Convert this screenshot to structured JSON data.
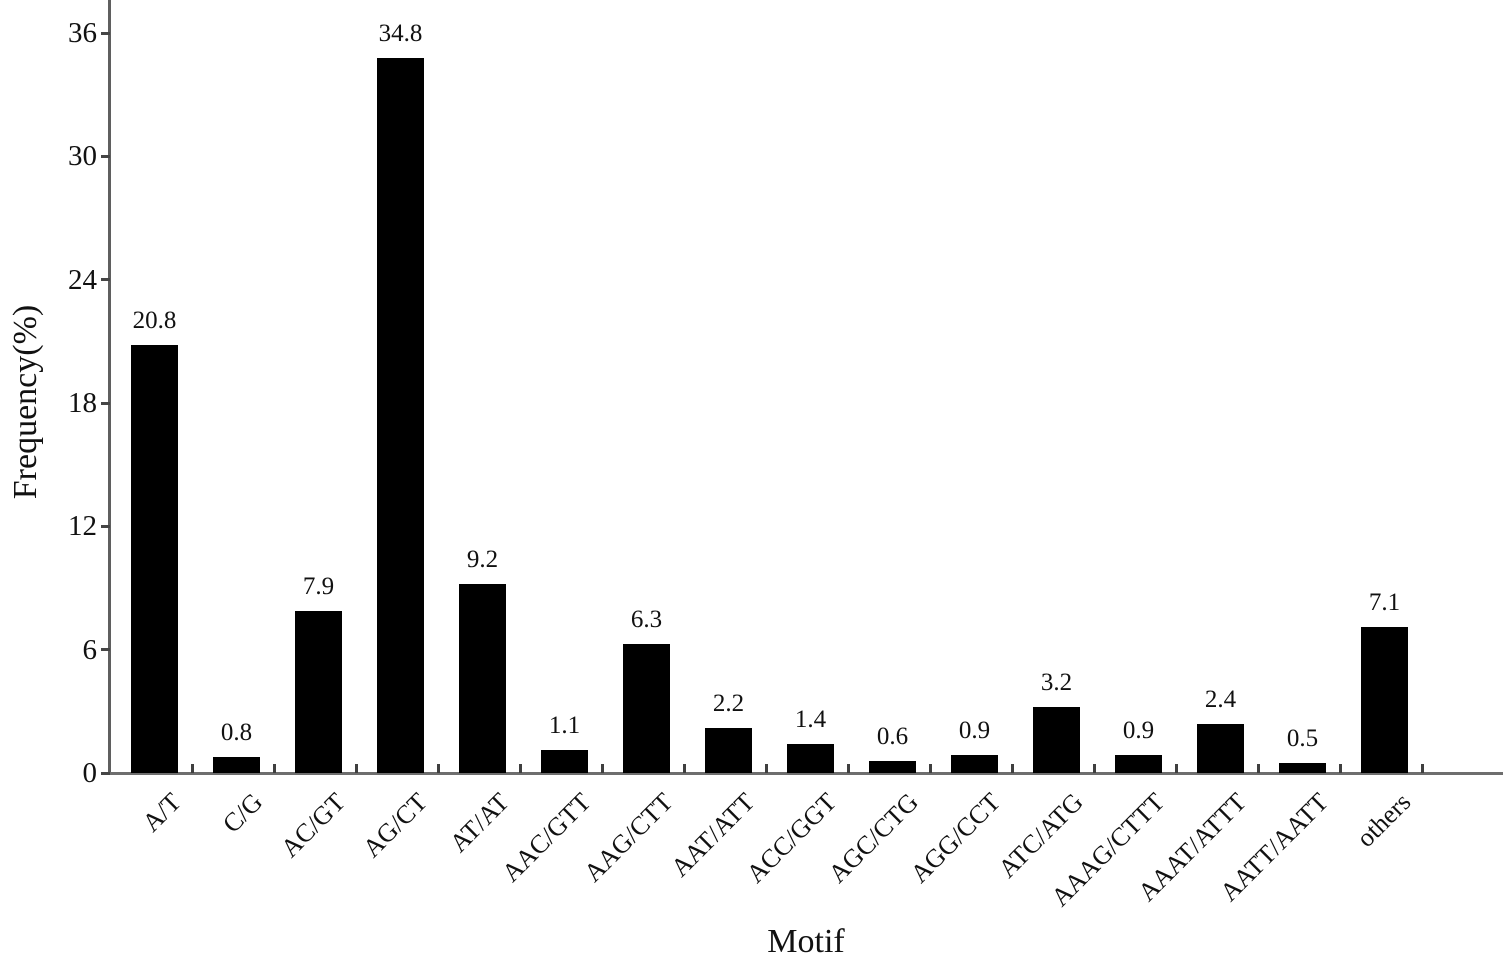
{
  "figure": {
    "background": "#ffffff",
    "text_color": "#111111"
  },
  "chart_data": {
    "type": "bar",
    "title": "",
    "xlabel": "Motif",
    "ylabel": "Frequency(%)",
    "categories": [
      "A/T",
      "C/G",
      "AC/GT",
      "AG/CT",
      "AT/AT",
      "AAC/GTT",
      "AAG/CTT",
      "AAT/ATT",
      "ACC/GGT",
      "AGC/CTG",
      "AGG/CCT",
      "ATC/ATG",
      "AAAG/CTTT",
      "AAAT/ATTT",
      "AATT/AATT",
      "others"
    ],
    "values": [
      20.8,
      0.8,
      7.9,
      34.8,
      9.2,
      1.1,
      6.3,
      2.2,
      1.4,
      0.6,
      0.9,
      3.2,
      0.9,
      2.4,
      0.5,
      7.1
    ],
    "value_labels": [
      "20.8",
      "0.8",
      "7.9",
      "34.8",
      "9.2",
      "1.1",
      "6.3",
      "2.2",
      "1.4",
      "0.6",
      "0.9",
      "3.2",
      "0.9",
      "2.4",
      "0.5",
      "7.1"
    ],
    "yticks": [
      0,
      6,
      12,
      18,
      24,
      30,
      36
    ],
    "ylim": [
      0,
      37.6
    ],
    "grid": false,
    "legend": null,
    "bar_color": "#000000",
    "axis_color": "#5f5f5f",
    "xtick_label_rotation_deg": -45
  }
}
